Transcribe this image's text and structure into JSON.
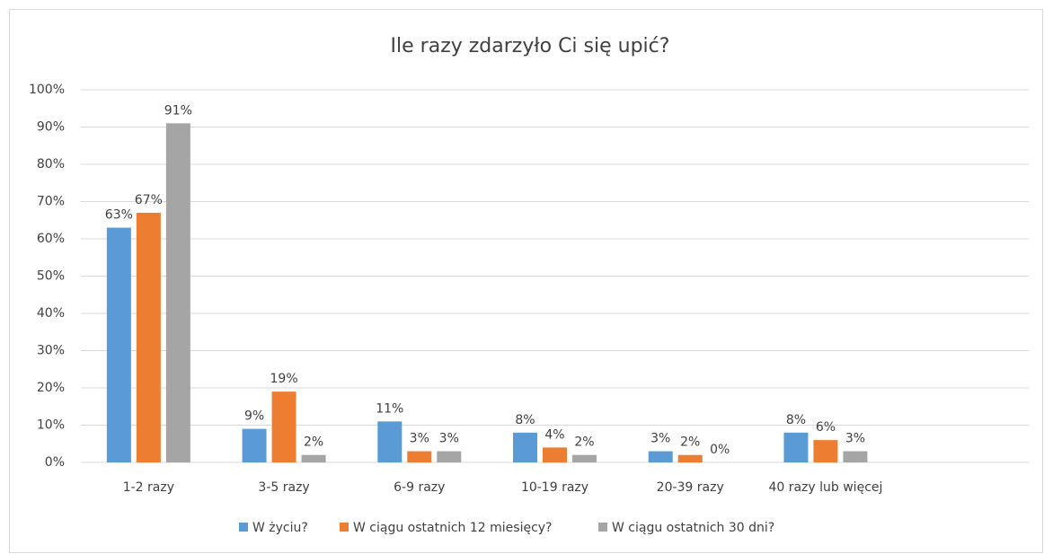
{
  "chart_data": {
    "type": "bar",
    "title": "Ile razy zdarzyło Ci się upić?",
    "categories": [
      "1-2 razy",
      "3-5 razy",
      "6-9 razy",
      "10-19 razy",
      "20-39 razy",
      "40 razy lub więcej",
      null
    ],
    "series": [
      {
        "name": "W życiu?",
        "color": "#5b9bd5",
        "values": [
          63,
          9,
          11,
          8,
          3,
          8,
          null
        ],
        "value_labels": [
          "63%",
          "9%",
          "11%",
          "8%",
          "3%",
          "8%",
          null
        ]
      },
      {
        "name": "W ciągu ostatnich 12 miesięcy?",
        "color": "#ed7d31",
        "values": [
          67,
          19,
          3,
          4,
          2,
          6,
          null
        ],
        "value_labels": [
          "67%",
          "19%",
          "3%",
          "4%",
          "2%",
          "6%",
          null
        ]
      },
      {
        "name": "W ciągu ostatnich 30 dni?",
        "color": "#a5a5a5",
        "values": [
          91,
          2,
          3,
          2,
          0,
          3,
          null
        ],
        "value_labels": [
          "91%",
          "2%",
          "3%",
          "2%",
          "0%",
          "3%",
          null
        ]
      }
    ],
    "ylim": [
      0,
      100
    ],
    "yticks": [
      {
        "value": 0,
        "label": "0%"
      },
      {
        "value": 10,
        "label": "10%"
      },
      {
        "value": 20,
        "label": "20%"
      },
      {
        "value": 30,
        "label": "30%"
      },
      {
        "value": 40,
        "label": "40%"
      },
      {
        "value": 50,
        "label": "50%"
      },
      {
        "value": 60,
        "label": "60%"
      },
      {
        "value": 70,
        "label": "70%"
      },
      {
        "value": 80,
        "label": "80%"
      },
      {
        "value": 90,
        "label": "90%"
      },
      {
        "value": 100,
        "label": "100%"
      }
    ],
    "grid": true,
    "legend": "bottom"
  }
}
